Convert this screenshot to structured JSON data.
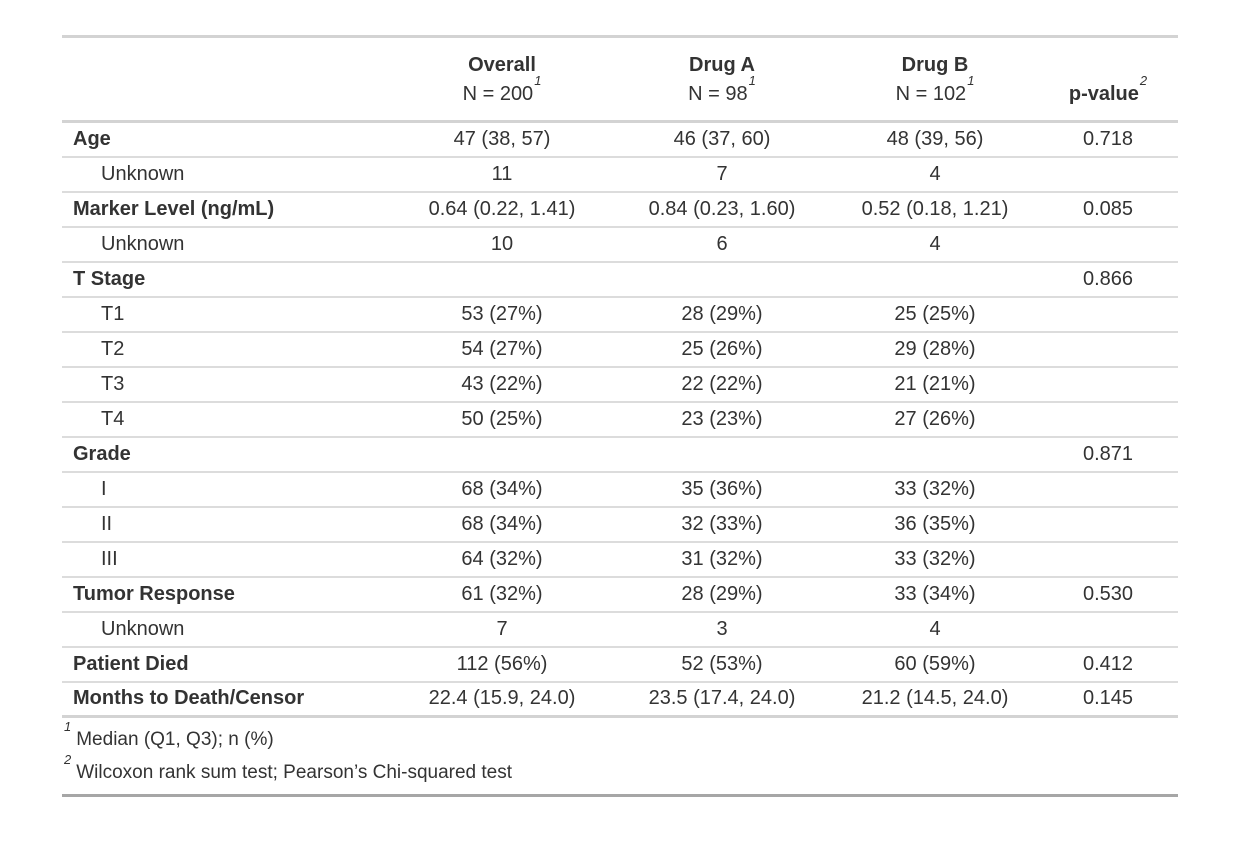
{
  "colors": {
    "border_light": "#d3d3d3",
    "row_separator": "#dcdcdc",
    "table_end": "#a6a6a6",
    "text": "#333333"
  },
  "chart_data": {
    "type": "table",
    "columns": [
      {
        "id": "label",
        "title": "",
        "subtitle": "",
        "footnote_mark": ""
      },
      {
        "id": "overall",
        "title": "Overall",
        "subtitle": "N = 200",
        "footnote_mark": "1"
      },
      {
        "id": "drug_a",
        "title": "Drug A",
        "subtitle": "N = 98",
        "footnote_mark": "1"
      },
      {
        "id": "drug_b",
        "title": "Drug B",
        "subtitle": "N = 102",
        "footnote_mark": "1"
      },
      {
        "id": "p_value",
        "title": "p-value",
        "subtitle": "",
        "footnote_mark": "2"
      }
    ],
    "rows": [
      {
        "label": "Age",
        "level": "variable",
        "overall": "47 (38, 57)",
        "drug_a": "46 (37, 60)",
        "drug_b": "48 (39, 56)",
        "p_value": "0.718"
      },
      {
        "label": "Unknown",
        "level": "sub",
        "overall": "11",
        "drug_a": "7",
        "drug_b": "4",
        "p_value": ""
      },
      {
        "label": "Marker Level (ng/mL)",
        "level": "variable",
        "overall": "0.64 (0.22, 1.41)",
        "drug_a": "0.84 (0.23, 1.60)",
        "drug_b": "0.52 (0.18, 1.21)",
        "p_value": "0.085"
      },
      {
        "label": "Unknown",
        "level": "sub",
        "overall": "10",
        "drug_a": "6",
        "drug_b": "4",
        "p_value": ""
      },
      {
        "label": "T Stage",
        "level": "variable",
        "overall": "",
        "drug_a": "",
        "drug_b": "",
        "p_value": "0.866"
      },
      {
        "label": "T1",
        "level": "sub",
        "overall": "53 (27%)",
        "drug_a": "28 (29%)",
        "drug_b": "25 (25%)",
        "p_value": ""
      },
      {
        "label": "T2",
        "level": "sub",
        "overall": "54 (27%)",
        "drug_a": "25 (26%)",
        "drug_b": "29 (28%)",
        "p_value": ""
      },
      {
        "label": "T3",
        "level": "sub",
        "overall": "43 (22%)",
        "drug_a": "22 (22%)",
        "drug_b": "21 (21%)",
        "p_value": ""
      },
      {
        "label": "T4",
        "level": "sub",
        "overall": "50 (25%)",
        "drug_a": "23 (23%)",
        "drug_b": "27 (26%)",
        "p_value": ""
      },
      {
        "label": "Grade",
        "level": "variable",
        "overall": "",
        "drug_a": "",
        "drug_b": "",
        "p_value": "0.871"
      },
      {
        "label": "I",
        "level": "sub",
        "overall": "68 (34%)",
        "drug_a": "35 (36%)",
        "drug_b": "33 (32%)",
        "p_value": ""
      },
      {
        "label": "II",
        "level": "sub",
        "overall": "68 (34%)",
        "drug_a": "32 (33%)",
        "drug_b": "36 (35%)",
        "p_value": ""
      },
      {
        "label": "III",
        "level": "sub",
        "overall": "64 (32%)",
        "drug_a": "31 (32%)",
        "drug_b": "33 (32%)",
        "p_value": ""
      },
      {
        "label": "Tumor Response",
        "level": "variable",
        "overall": "61 (32%)",
        "drug_a": "28 (29%)",
        "drug_b": "33 (34%)",
        "p_value": "0.530"
      },
      {
        "label": "Unknown",
        "level": "sub",
        "overall": "7",
        "drug_a": "3",
        "drug_b": "4",
        "p_value": ""
      },
      {
        "label": "Patient Died",
        "level": "variable",
        "overall": "112 (56%)",
        "drug_a": "52 (53%)",
        "drug_b": "60 (59%)",
        "p_value": "0.412"
      },
      {
        "label": "Months to Death/Censor",
        "level": "variable",
        "overall": "22.4 (15.9, 24.0)",
        "drug_a": "23.5 (17.4, 24.0)",
        "drug_b": "21.2 (14.5, 24.0)",
        "p_value": "0.145"
      }
    ],
    "footnotes": [
      {
        "mark": "1",
        "text": "Median (Q1, Q3); n (%)"
      },
      {
        "mark": "2",
        "text": "Wilcoxon rank sum test; Pearson’s Chi-squared test"
      }
    ]
  }
}
